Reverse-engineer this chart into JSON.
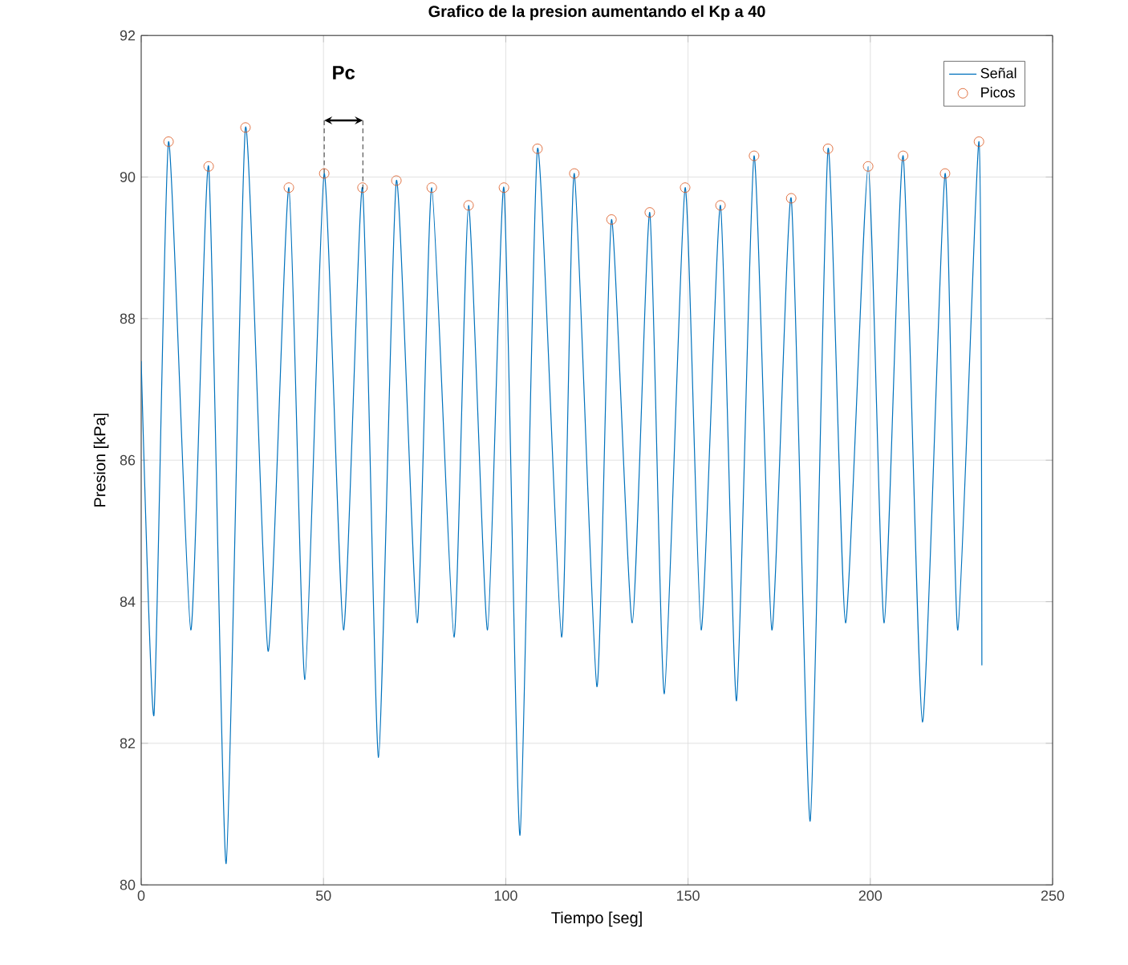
{
  "chart_data": {
    "type": "line",
    "title": "Grafico de la presion aumentando el Kp a 40",
    "xlabel": "Tiempo [seg]",
    "ylabel": "Presion [kPa]",
    "xlim": [
      0,
      250
    ],
    "ylim": [
      80,
      92
    ],
    "xticks": [
      0,
      50,
      100,
      150,
      200,
      250
    ],
    "yticks": [
      80,
      82,
      84,
      86,
      88,
      90,
      92
    ],
    "grid": true,
    "legend": "top right",
    "annotations": [
      "Pc"
    ],
    "series": [
      {
        "name": "Señal",
        "color": "#0072bd",
        "marker": "none",
        "x": [
          0,
          3.5,
          7.5,
          13.6,
          18.5,
          23.3,
          28.6,
          34.8,
          40.5,
          44.9,
          50.2,
          55.5,
          60.7,
          65.1,
          70,
          75.7,
          79.7,
          85.8,
          89.8,
          95,
          99.5,
          103.9,
          108.7,
          115.3,
          118.8,
          125,
          129,
          134.7,
          139.5,
          143.5,
          149.2,
          153.6,
          158.9,
          163.3,
          168.1,
          173,
          178.3,
          183.5,
          188.4,
          193.2,
          199.4,
          203.8,
          209,
          214.3,
          220.5,
          224,
          229.8,
          230.6
        ],
        "values": [
          87.4,
          82.4,
          90.5,
          83.6,
          90.15,
          80.3,
          90.7,
          83.3,
          89.85,
          82.9,
          90.05,
          83.6,
          89.85,
          81.8,
          89.95,
          83.7,
          89.85,
          83.5,
          89.6,
          83.6,
          89.85,
          80.7,
          90.4,
          83.5,
          90.05,
          82.8,
          89.4,
          83.7,
          89.5,
          82.7,
          89.85,
          83.6,
          89.6,
          82.6,
          90.3,
          83.6,
          89.7,
          80.9,
          90.4,
          83.7,
          90.15,
          83.7,
          90.3,
          82.3,
          90.05,
          83.6,
          90.5,
          83.1
        ]
      },
      {
        "name": "Picos",
        "type": "scatter",
        "color": "#d95319",
        "marker": "circle",
        "x": [
          7.5,
          18.5,
          28.6,
          40.5,
          50.2,
          60.7,
          70,
          79.7,
          89.8,
          99.5,
          108.7,
          118.8,
          129,
          139.5,
          149.2,
          158.9,
          168.1,
          178.3,
          188.4,
          199.4,
          209,
          220.5,
          229.8
        ],
        "values": [
          90.5,
          90.15,
          90.7,
          89.85,
          90.05,
          89.85,
          89.95,
          89.85,
          89.6,
          89.85,
          90.4,
          90.05,
          89.4,
          89.5,
          89.85,
          89.6,
          90.3,
          89.7,
          90.4,
          90.15,
          90.3,
          90.05,
          90.5
        ]
      }
    ]
  }
}
